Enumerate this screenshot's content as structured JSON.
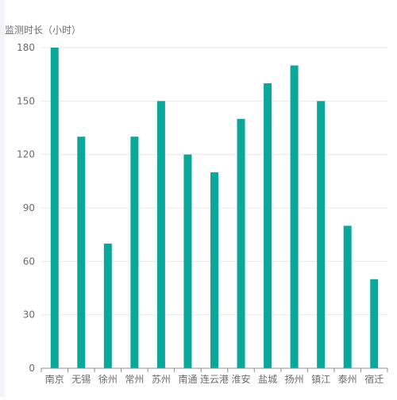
{
  "chart_data": {
    "type": "bar",
    "ylabel": "监测时长（小时）",
    "categories": [
      "南京",
      "无锡",
      "徐州",
      "常州",
      "苏州",
      "南通",
      "连云港",
      "淮安",
      "盐城",
      "扬州",
      "镇江",
      "泰州",
      "宿迁"
    ],
    "values": [
      180,
      130,
      70,
      130,
      150,
      120,
      110,
      140,
      160,
      170,
      150,
      80,
      50
    ],
    "ylim": [
      0,
      180
    ],
    "yticks": [
      0,
      30,
      60,
      90,
      120,
      150,
      180
    ],
    "grid": true,
    "legend": "none",
    "colors": {
      "bar": "#0aa89b",
      "grid": "#e8e8e8",
      "axis": "#8c8c8c",
      "tick_text": "#6b6b6b"
    }
  }
}
